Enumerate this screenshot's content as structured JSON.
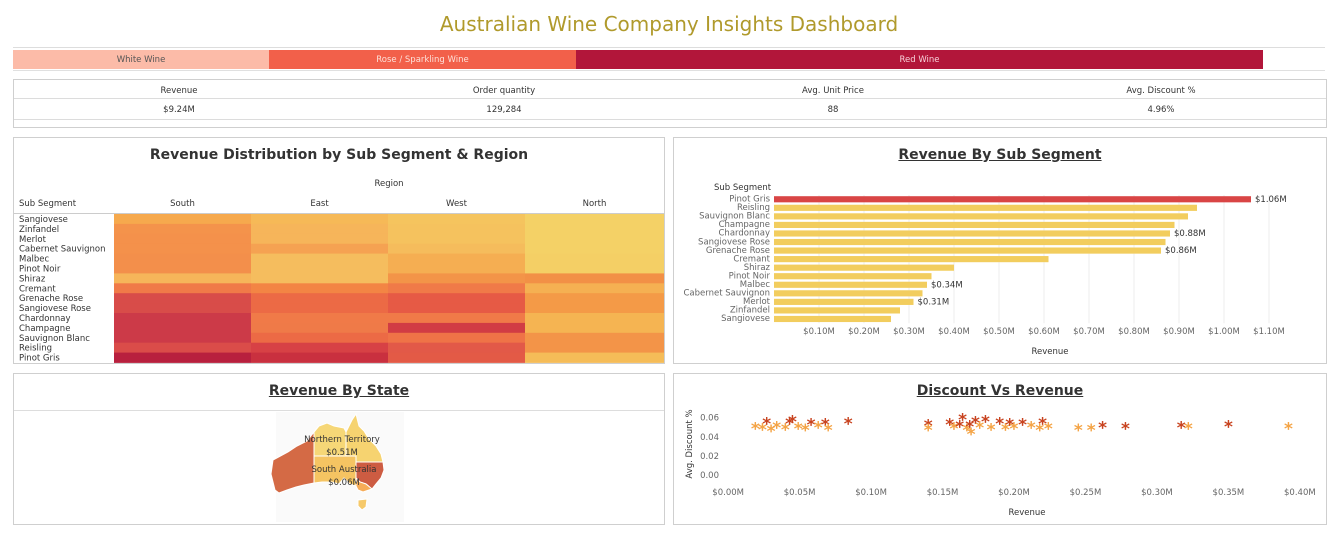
{
  "title": "Australian Wine Company Insights Dashboard",
  "segments": [
    {
      "label": "White Wine",
      "color": "#fcbba8",
      "text_color": "#555555"
    },
    {
      "label": "Rose / Sparkling Wine",
      "color": "#f2604a",
      "text_color": "#fde0d8"
    },
    {
      "label": "Red Wine",
      "color": "#b2163a",
      "text_color": "#f6d0d8"
    }
  ],
  "kpis": [
    {
      "label": "Revenue",
      "value": "$9.24M"
    },
    {
      "label": "Order quantity",
      "value": "129,284"
    },
    {
      "label": "Avg. Unit Price",
      "value": "88"
    },
    {
      "label": "Avg. Discount %",
      "value": "4.96%"
    }
  ],
  "heatmap": {
    "title": "Revenue Distribution by Sub Segment & Region",
    "region_label": "Region",
    "row_header": "Sub Segment",
    "regions": [
      "South",
      "East",
      "West",
      "North"
    ],
    "rows": [
      "Sangiovese",
      "Zinfandel",
      "Merlot",
      "Cabernet Sauvignon",
      "Malbec",
      "Pinot Noir",
      "Shiraz",
      "Cremant",
      "Grenache Rose",
      "Sangiovese Rose",
      "Chardonnay",
      "Champagne",
      "Sauvignon Blanc",
      "Reisling",
      "Pinot Gris"
    ],
    "colors": [
      [
        "#f6a94d",
        "#f6b957",
        "#f5c45e",
        "#f4d166"
      ],
      [
        "#f4934b",
        "#f6b55a",
        "#f5c25e",
        "#f4d166"
      ],
      [
        "#f4914b",
        "#f6b55a",
        "#f5c25e",
        "#f4d166"
      ],
      [
        "#f4914b",
        "#f5a252",
        "#f5bc5c",
        "#f4d166"
      ],
      [
        "#f38f4b",
        "#f5bd5e",
        "#f5ae52",
        "#f4cf65"
      ],
      [
        "#f38f4b",
        "#f5bd5e",
        "#f5ae52",
        "#f4cf65"
      ],
      [
        "#f6b55a",
        "#f5bd5e",
        "#f39448",
        "#f29046"
      ],
      [
        "#f07a48",
        "#f38544",
        "#f07a48",
        "#f5b052"
      ],
      [
        "#d84c49",
        "#ec6a45",
        "#e65a45",
        "#f49a47"
      ],
      [
        "#d84c49",
        "#ec6a45",
        "#e65a45",
        "#f49a47"
      ],
      [
        "#cc3a48",
        "#f07a48",
        "#f07a48",
        "#f5b452"
      ],
      [
        "#cc3a48",
        "#ef7a48",
        "#d13c44",
        "#f5b452"
      ],
      [
        "#cc3a48",
        "#ec6a45",
        "#ef7347",
        "#f39448"
      ],
      [
        "#da4c49",
        "#d74145",
        "#e25948",
        "#f39448"
      ],
      [
        "#b8203e",
        "#c9303f",
        "#e35a46",
        "#f5bc58"
      ]
    ]
  },
  "subsegment_chart": {
    "title": "Revenue By Sub Segment",
    "axis_header": "Sub Segment",
    "xlabel": "Revenue",
    "highlight_color": "#d94545",
    "bar_color": "#f2cd5e",
    "chart_data": {
      "type": "bar",
      "orientation": "horizontal",
      "title": "Revenue By Sub Segment",
      "xlabel": "Revenue",
      "ylabel": "Sub Segment",
      "categories": [
        "Pinot Gris",
        "Reisling",
        "Sauvignon Blanc",
        "Champagne",
        "Chardonnay",
        "Sangiovese Rose",
        "Grenache Rose",
        "Cremant",
        "Shiraz",
        "Pinot Noir",
        "Malbec",
        "Cabernet Sauvignon",
        "Merlot",
        "Zinfandel",
        "Sangiovese"
      ],
      "values": [
        1.06,
        0.94,
        0.92,
        0.89,
        0.88,
        0.87,
        0.86,
        0.61,
        0.4,
        0.35,
        0.34,
        0.33,
        0.31,
        0.28,
        0.26
      ],
      "value_labels": [
        "$1.06M",
        "",
        "",
        "",
        "$0.88M",
        "",
        "$0.86M",
        "",
        "",
        "",
        "$0.34M",
        "",
        "$0.31M",
        "",
        ""
      ],
      "xlim": [
        0.0,
        1.15
      ],
      "xticks": [
        0.1,
        0.2,
        0.3,
        0.4,
        0.5,
        0.6,
        0.7,
        0.8,
        0.9,
        1.0,
        1.1
      ],
      "xtick_labels": [
        "$0.10M",
        "$0.20M",
        "$0.30M",
        "$0.40M",
        "$0.50M",
        "$0.60M",
        "$0.70M",
        "$0.80M",
        "$0.90M",
        "$1.00M",
        "$1.10M"
      ]
    }
  },
  "state_map": {
    "title": "Revenue By State",
    "labels": [
      {
        "name": "Northern Territory",
        "value": "$0.51M"
      },
      {
        "name": "South Australia",
        "value": "$0.06M"
      }
    ]
  },
  "scatter_chart": {
    "title": "Discount Vs Revenue",
    "xlabel": "Revenue",
    "ylabel": "Avg. Discount %",
    "colors": {
      "dark": "#c8431f",
      "light": "#f4a446"
    },
    "chart_data": {
      "type": "scatter",
      "title": "Discount Vs Revenue",
      "xlabel": "Revenue",
      "ylabel": "Avg. Discount %",
      "xlim": [
        -0.005,
        0.405
      ],
      "ylim": [
        -0.002,
        0.066
      ],
      "xticks": [
        0,
        0.05,
        0.1,
        0.15,
        0.2,
        0.25,
        0.3,
        0.35,
        0.4
      ],
      "xtick_labels": [
        "$0.00M",
        "$0.05M",
        "$0.10M",
        "$0.15M",
        "$0.20M",
        "$0.25M",
        "$0.30M",
        "$0.35M",
        "$0.40M"
      ],
      "yticks": [
        0,
        0.02,
        0.04,
        0.06
      ],
      "ytick_labels": [
        "0.00",
        "0.02",
        "0.04",
        "0.06"
      ],
      "points": [
        {
          "x": 0.019,
          "y": 0.05,
          "c": "light"
        },
        {
          "x": 0.024,
          "y": 0.049,
          "c": "light"
        },
        {
          "x": 0.027,
          "y": 0.055,
          "c": "dark"
        },
        {
          "x": 0.03,
          "y": 0.047,
          "c": "light"
        },
        {
          "x": 0.034,
          "y": 0.051,
          "c": "light"
        },
        {
          "x": 0.04,
          "y": 0.049,
          "c": "light"
        },
        {
          "x": 0.043,
          "y": 0.055,
          "c": "dark"
        },
        {
          "x": 0.045,
          "y": 0.057,
          "c": "dark"
        },
        {
          "x": 0.049,
          "y": 0.05,
          "c": "light"
        },
        {
          "x": 0.054,
          "y": 0.048,
          "c": "light"
        },
        {
          "x": 0.058,
          "y": 0.054,
          "c": "dark"
        },
        {
          "x": 0.063,
          "y": 0.051,
          "c": "light"
        },
        {
          "x": 0.068,
          "y": 0.054,
          "c": "dark"
        },
        {
          "x": 0.07,
          "y": 0.048,
          "c": "light"
        },
        {
          "x": 0.084,
          "y": 0.055,
          "c": "dark"
        },
        {
          "x": 0.14,
          "y": 0.053,
          "c": "dark"
        },
        {
          "x": 0.14,
          "y": 0.048,
          "c": "light"
        },
        {
          "x": 0.155,
          "y": 0.054,
          "c": "dark"
        },
        {
          "x": 0.158,
          "y": 0.05,
          "c": "light"
        },
        {
          "x": 0.162,
          "y": 0.052,
          "c": "dark"
        },
        {
          "x": 0.164,
          "y": 0.059,
          "c": "dark"
        },
        {
          "x": 0.167,
          "y": 0.048,
          "c": "light"
        },
        {
          "x": 0.169,
          "y": 0.052,
          "c": "dark"
        },
        {
          "x": 0.17,
          "y": 0.044,
          "c": "light"
        },
        {
          "x": 0.173,
          "y": 0.056,
          "c": "dark"
        },
        {
          "x": 0.176,
          "y": 0.051,
          "c": "light"
        },
        {
          "x": 0.18,
          "y": 0.057,
          "c": "dark"
        },
        {
          "x": 0.184,
          "y": 0.049,
          "c": "light"
        },
        {
          "x": 0.19,
          "y": 0.055,
          "c": "dark"
        },
        {
          "x": 0.194,
          "y": 0.049,
          "c": "light"
        },
        {
          "x": 0.197,
          "y": 0.054,
          "c": "dark"
        },
        {
          "x": 0.2,
          "y": 0.05,
          "c": "light"
        },
        {
          "x": 0.206,
          "y": 0.054,
          "c": "dark"
        },
        {
          "x": 0.212,
          "y": 0.051,
          "c": "light"
        },
        {
          "x": 0.218,
          "y": 0.048,
          "c": "light"
        },
        {
          "x": 0.22,
          "y": 0.055,
          "c": "dark"
        },
        {
          "x": 0.224,
          "y": 0.05,
          "c": "light"
        },
        {
          "x": 0.245,
          "y": 0.048,
          "c": "light"
        },
        {
          "x": 0.254,
          "y": 0.048,
          "c": "light"
        },
        {
          "x": 0.262,
          "y": 0.051,
          "c": "dark"
        },
        {
          "x": 0.278,
          "y": 0.05,
          "c": "dark"
        },
        {
          "x": 0.317,
          "y": 0.051,
          "c": "dark"
        },
        {
          "x": 0.322,
          "y": 0.05,
          "c": "light"
        },
        {
          "x": 0.35,
          "y": 0.052,
          "c": "dark"
        },
        {
          "x": 0.392,
          "y": 0.05,
          "c": "light"
        }
      ]
    }
  }
}
